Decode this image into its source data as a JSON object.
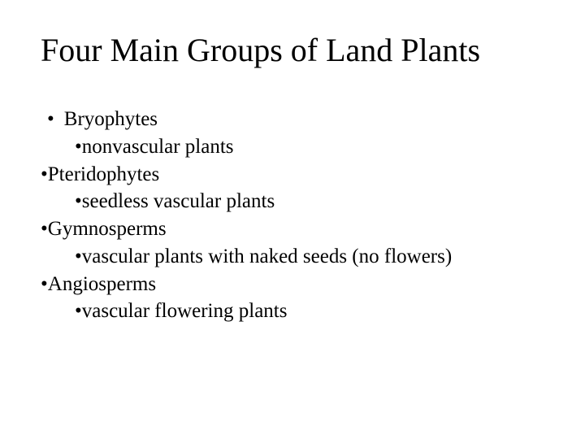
{
  "title_fontsize": 40,
  "body_fontsize": 25,
  "background_color": "#ffffff",
  "text_color": "#000000",
  "font_family": "Times New Roman",
  "title": "Four Main Groups of Land Plants",
  "items": [
    {
      "level": 1,
      "text": "Bryophytes",
      "bullet": "•",
      "style": "dot"
    },
    {
      "level": 2,
      "text": "nonvascular plants",
      "bullet": "•",
      "style": "char"
    },
    {
      "level": 1,
      "text": "Pteridophytes",
      "bullet": "•",
      "style": "charb"
    },
    {
      "level": 2,
      "text": "seedless vascular plants",
      "bullet": "•",
      "style": "char"
    },
    {
      "level": 1,
      "text": "Gymnosperms",
      "bullet": "•",
      "style": "charb"
    },
    {
      "level": 2,
      "text": "vascular plants with naked seeds (no flowers)",
      "bullet": "•",
      "style": "char"
    },
    {
      "level": 1,
      "text": "Angiosperms",
      "bullet": "•",
      "style": "charb"
    },
    {
      "level": 2,
      "text": "vascular flowering plants",
      "bullet": "•",
      "style": "char"
    }
  ]
}
